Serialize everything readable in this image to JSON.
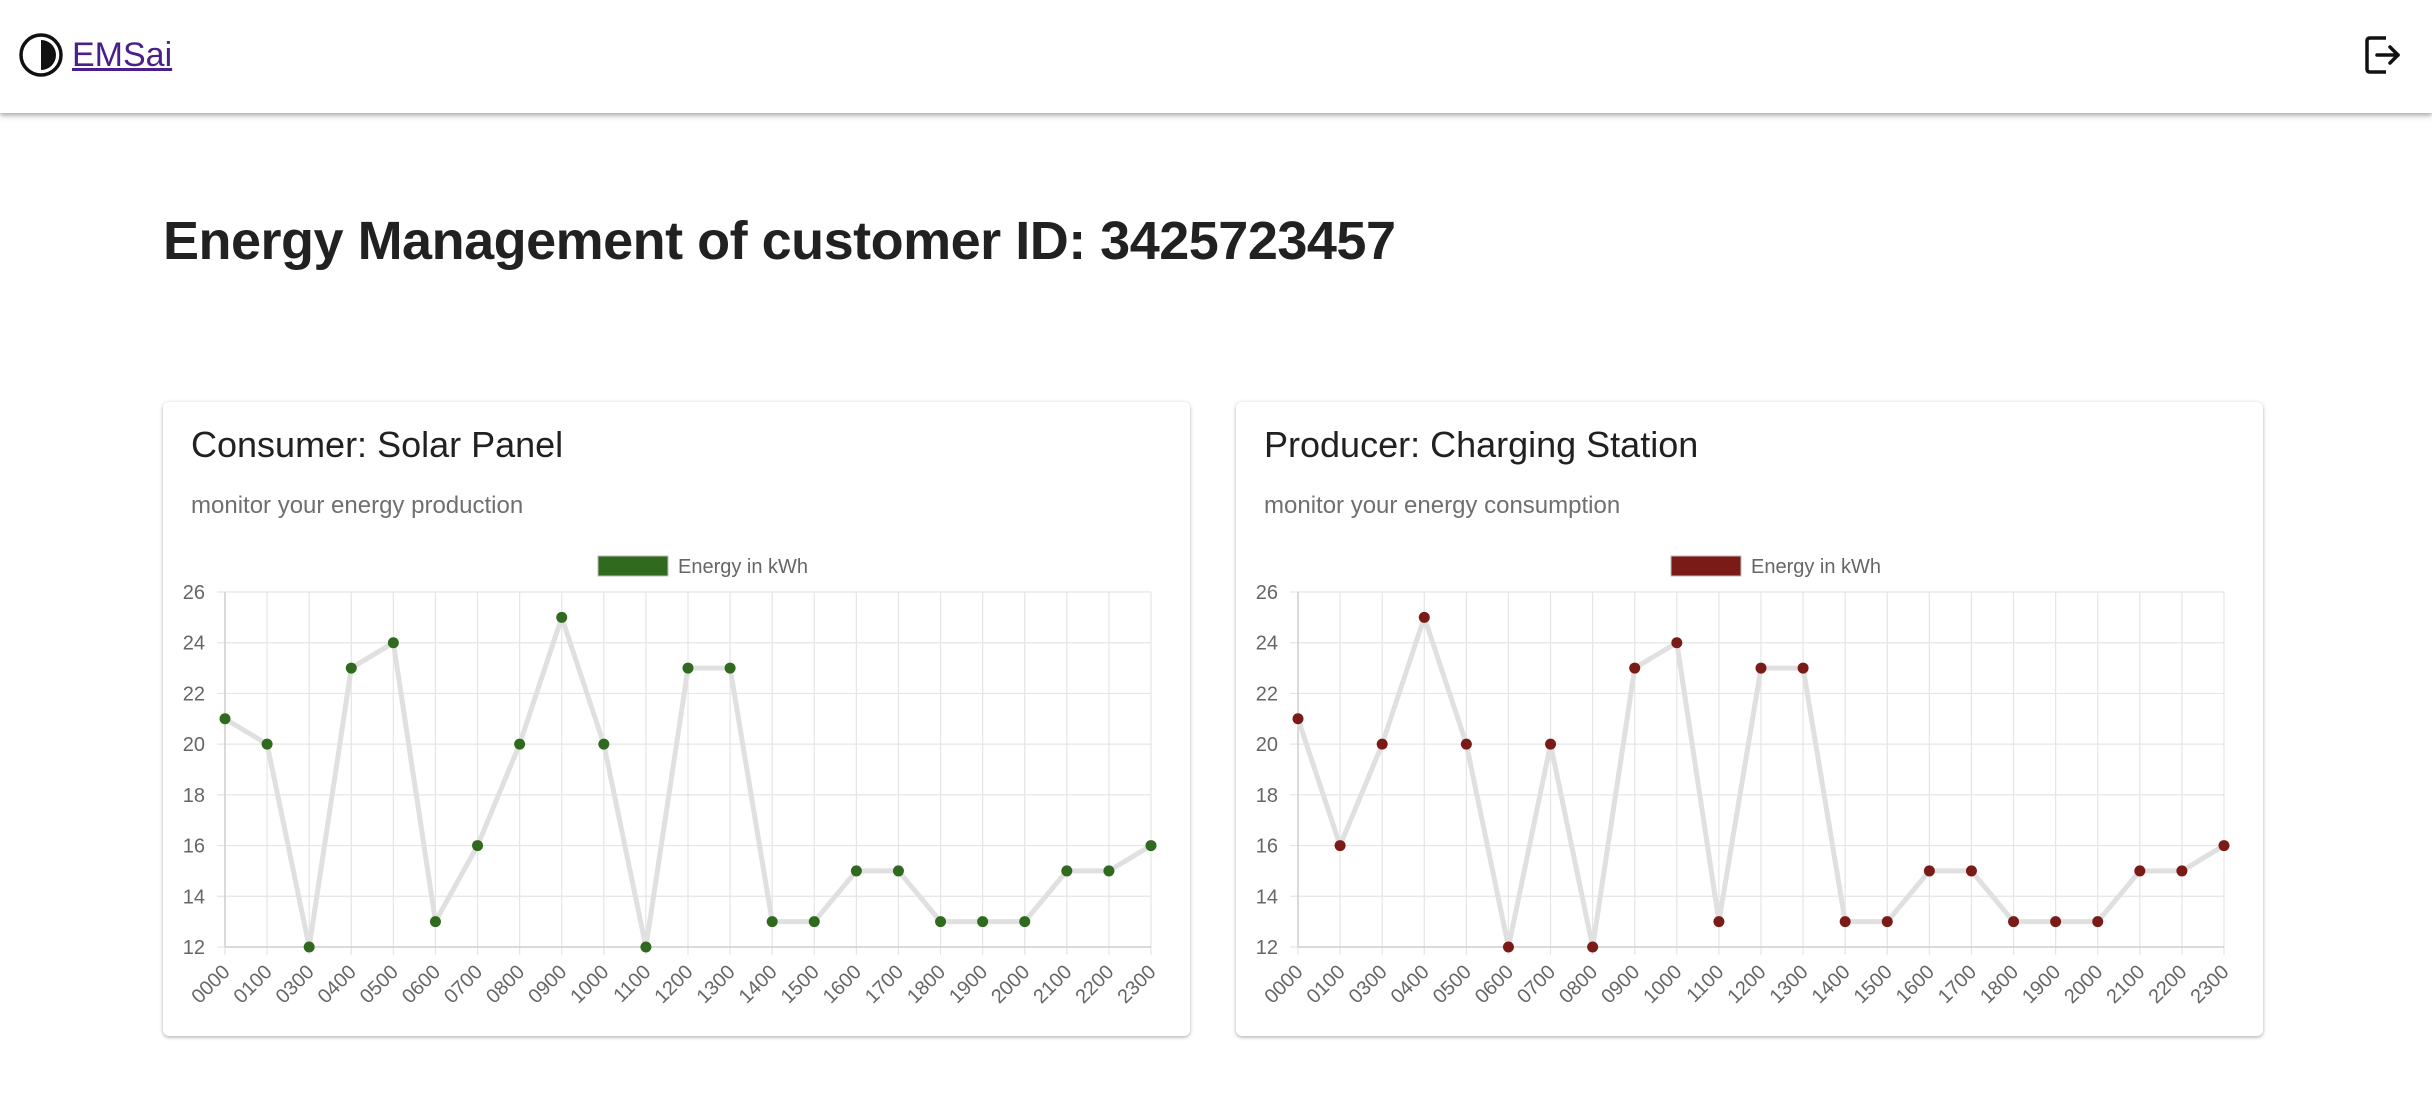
{
  "header": {
    "brand": "EMSai",
    "logo_icon": "half-circle-contrast-icon",
    "logout_icon": "logout-icon"
  },
  "page": {
    "title": "Energy Management of customer ID: 3425723457"
  },
  "cards": [
    {
      "title": "Consumer: Solar Panel",
      "subtitle": "monitor your energy production"
    },
    {
      "title": "Producer: Charging Station",
      "subtitle": "monitor your energy consumption"
    }
  ],
  "chart_data": [
    {
      "type": "line",
      "categories": [
        "0000",
        "0100",
        "0300",
        "0400",
        "0500",
        "0600",
        "0700",
        "0800",
        "0900",
        "1000",
        "1100",
        "1200",
        "1300",
        "1400",
        "1500",
        "1600",
        "1700",
        "1800",
        "1900",
        "2000",
        "2100",
        "2200",
        "2300"
      ],
      "series": [
        {
          "name": "Energy in kWh",
          "values": [
            21,
            20,
            12,
            23,
            24,
            13,
            16,
            20,
            25,
            20,
            12,
            23,
            23,
            13,
            13,
            15,
            15,
            13,
            13,
            13,
            15,
            15,
            16
          ],
          "color": "#2f6a1f"
        }
      ],
      "yticks": [
        12,
        14,
        16,
        18,
        20,
        22,
        24,
        26
      ],
      "ylim": [
        12,
        26
      ],
      "line_color": "#e0e0e0",
      "grid": true,
      "legend": "top-center"
    },
    {
      "type": "line",
      "categories": [
        "0000",
        "0100",
        "0300",
        "0400",
        "0500",
        "0600",
        "0700",
        "0800",
        "0900",
        "1000",
        "1100",
        "1200",
        "1300",
        "1400",
        "1500",
        "1600",
        "1700",
        "1800",
        "1900",
        "2000",
        "2100",
        "2200",
        "2300"
      ],
      "series": [
        {
          "name": "Energy in kWh",
          "values": [
            21,
            16,
            20,
            25,
            20,
            12,
            20,
            12,
            23,
            24,
            13,
            23,
            23,
            13,
            13,
            15,
            15,
            13,
            13,
            13,
            15,
            15,
            16
          ],
          "color": "#7a1b17"
        }
      ],
      "yticks": [
        12,
        14,
        16,
        18,
        20,
        22,
        24,
        26
      ],
      "ylim": [
        12,
        26
      ],
      "line_color": "#e0e0e0",
      "grid": true,
      "legend": "top-center"
    }
  ]
}
